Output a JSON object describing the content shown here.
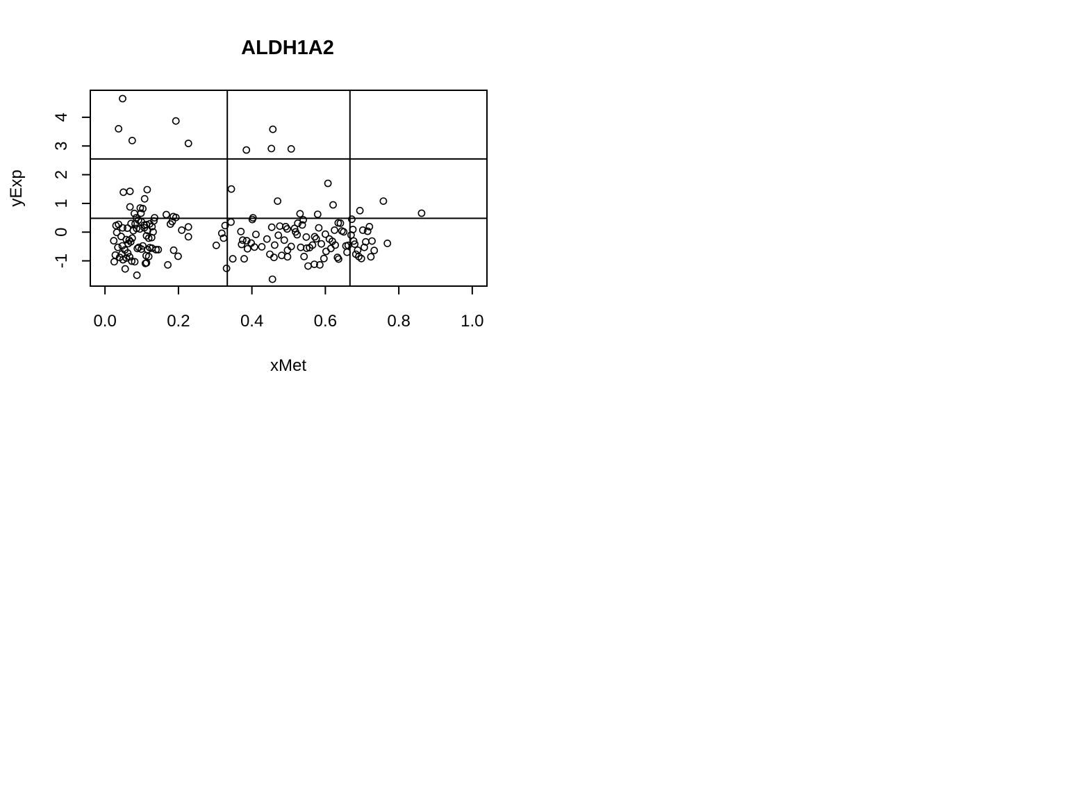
{
  "chart_data": {
    "type": "scatter",
    "title": "ALDH1A2",
    "xlabel": "xMet",
    "ylabel": "yExp",
    "xlim": [
      -0.04,
      1.04
    ],
    "ylim": [
      -1.88,
      4.94
    ],
    "x_ticks": [
      0.0,
      0.2,
      0.4,
      0.6,
      0.8,
      1.0
    ],
    "x_tick_labels": [
      "0.0",
      "0.2",
      "0.4",
      "0.6",
      "0.8",
      "1.0"
    ],
    "y_ticks": [
      -1,
      0,
      1,
      2,
      3,
      4
    ],
    "y_tick_labels": [
      "-1",
      "0",
      "1",
      "2",
      "3",
      "4"
    ],
    "grid": false,
    "reference_lines": {
      "vertical_x": [
        0.333,
        0.667
      ],
      "horizontal_y": [
        2.55,
        0.48
      ]
    },
    "marker": "open-circle",
    "series": [
      {
        "points": [
          [
            0.048,
            4.65
          ],
          [
            0.037,
            3.6
          ],
          [
            0.074,
            3.19
          ],
          [
            0.193,
            3.87
          ],
          [
            0.227,
            3.09
          ],
          [
            0.385,
            2.86
          ],
          [
            0.453,
            2.91
          ],
          [
            0.457,
            3.58
          ],
          [
            0.507,
            2.9
          ],
          [
            0.05,
            1.39
          ],
          [
            0.068,
            1.42
          ],
          [
            0.115,
            1.48
          ],
          [
            0.108,
            1.16
          ],
          [
            0.068,
            0.88
          ],
          [
            0.096,
            0.84
          ],
          [
            0.103,
            0.82
          ],
          [
            0.08,
            0.65
          ],
          [
            0.098,
            0.66
          ],
          [
            0.085,
            0.5
          ],
          [
            0.091,
            0.42
          ],
          [
            0.099,
            0.36
          ],
          [
            0.135,
            0.5
          ],
          [
            0.133,
            0.39
          ],
          [
            0.122,
            0.29
          ],
          [
            0.071,
            0.3
          ],
          [
            0.082,
            0.29
          ],
          [
            0.107,
            0.24
          ],
          [
            0.113,
            0.26
          ],
          [
            0.128,
            0.19
          ],
          [
            0.03,
            0.23
          ],
          [
            0.037,
            0.27
          ],
          [
            0.048,
            0.15
          ],
          [
            0.061,
            0.14
          ],
          [
            0.086,
            0.13
          ],
          [
            0.095,
            0.11
          ],
          [
            0.107,
            0.15
          ],
          [
            0.116,
            0.06
          ],
          [
            0.131,
            0.01
          ],
          [
            0.077,
            0.05
          ],
          [
            0.032,
            -0.01
          ],
          [
            0.044,
            -0.15
          ],
          [
            0.024,
            -0.3
          ],
          [
            0.058,
            -0.26
          ],
          [
            0.066,
            -0.28
          ],
          [
            0.074,
            -0.21
          ],
          [
            0.07,
            -0.34
          ],
          [
            0.063,
            -0.4
          ],
          [
            0.047,
            -0.48
          ],
          [
            0.035,
            -0.53
          ],
          [
            0.092,
            -0.53
          ],
          [
            0.099,
            -0.59
          ],
          [
            0.103,
            -0.48
          ],
          [
            0.088,
            -0.57
          ],
          [
            0.116,
            -0.61
          ],
          [
            0.128,
            -0.56
          ],
          [
            0.139,
            -0.61
          ],
          [
            0.145,
            -0.61
          ],
          [
            0.122,
            -0.54
          ],
          [
            0.119,
            -0.21
          ],
          [
            0.127,
            -0.19
          ],
          [
            0.113,
            -0.13
          ],
          [
            0.028,
            -0.8
          ],
          [
            0.046,
            -0.76
          ],
          [
            0.054,
            -0.62
          ],
          [
            0.062,
            -0.73
          ],
          [
            0.067,
            -0.86
          ],
          [
            0.058,
            -0.9
          ],
          [
            0.049,
            -0.96
          ],
          [
            0.04,
            -0.88
          ],
          [
            0.025,
            -1.03
          ],
          [
            0.073,
            -1.01
          ],
          [
            0.081,
            -1.03
          ],
          [
            0.11,
            -1.09
          ],
          [
            0.113,
            -1.07
          ],
          [
            0.055,
            -1.28
          ],
          [
            0.087,
            -1.5
          ],
          [
            0.112,
            -0.82
          ],
          [
            0.119,
            -0.85
          ],
          [
            0.167,
            0.61
          ],
          [
            0.178,
            0.28
          ],
          [
            0.183,
            0.37
          ],
          [
            0.186,
            0.54
          ],
          [
            0.193,
            0.51
          ],
          [
            0.209,
            0.07
          ],
          [
            0.227,
            0.18
          ],
          [
            0.227,
            -0.16
          ],
          [
            0.187,
            -0.63
          ],
          [
            0.199,
            -0.84
          ],
          [
            0.171,
            -1.14
          ],
          [
            0.303,
            -0.46
          ],
          [
            0.318,
            -0.04
          ],
          [
            0.323,
            -0.21
          ],
          [
            0.327,
            0.23
          ],
          [
            0.331,
            -1.26
          ],
          [
            0.343,
            0.35
          ],
          [
            0.344,
            1.5
          ],
          [
            0.348,
            -0.93
          ],
          [
            0.37,
            0.02
          ],
          [
            0.372,
            -0.43
          ],
          [
            0.375,
            -0.28
          ],
          [
            0.379,
            -0.93
          ],
          [
            0.386,
            -0.3
          ],
          [
            0.388,
            -0.58
          ],
          [
            0.398,
            -0.38
          ],
          [
            0.401,
            0.44
          ],
          [
            0.403,
            0.5
          ],
          [
            0.407,
            -0.52
          ],
          [
            0.411,
            -0.08
          ],
          [
            0.427,
            -0.51
          ],
          [
            0.441,
            -0.24
          ],
          [
            0.449,
            -0.77
          ],
          [
            0.454,
            0.17
          ],
          [
            0.456,
            -1.64
          ],
          [
            0.46,
            -0.88
          ],
          [
            0.462,
            -0.45
          ],
          [
            0.47,
            1.08
          ],
          [
            0.472,
            -0.11
          ],
          [
            0.476,
            0.21
          ],
          [
            0.481,
            -0.81
          ],
          [
            0.488,
            -0.28
          ],
          [
            0.492,
            0.19
          ],
          [
            0.496,
            0.11
          ],
          [
            0.497,
            -0.63
          ],
          [
            0.497,
            -0.86
          ],
          [
            0.507,
            -0.5
          ],
          [
            0.516,
            0.13
          ],
          [
            0.519,
            0.01
          ],
          [
            0.523,
            -0.09
          ],
          [
            0.525,
            0.31
          ],
          [
            0.531,
            0.64
          ],
          [
            0.533,
            -0.53
          ],
          [
            0.537,
            0.25
          ],
          [
            0.54,
            0.43
          ],
          [
            0.542,
            -0.85
          ],
          [
            0.548,
            -0.17
          ],
          [
            0.549,
            -0.56
          ],
          [
            0.553,
            -1.18
          ],
          [
            0.557,
            -0.54
          ],
          [
            0.565,
            -0.45
          ],
          [
            0.57,
            -1.12
          ],
          [
            0.571,
            -0.16
          ],
          [
            0.575,
            -0.23
          ],
          [
            0.579,
            0.62
          ],
          [
            0.582,
            0.15
          ],
          [
            0.585,
            -1.14
          ],
          [
            0.589,
            -0.41
          ],
          [
            0.596,
            -0.92
          ],
          [
            0.6,
            -0.07
          ],
          [
            0.602,
            -0.67
          ],
          [
            0.607,
            1.7
          ],
          [
            0.611,
            -0.24
          ],
          [
            0.615,
            -0.57
          ],
          [
            0.619,
            -0.32
          ],
          [
            0.621,
            0.95
          ],
          [
            0.625,
            0.07
          ],
          [
            0.627,
            -0.45
          ],
          [
            0.633,
            -0.88
          ],
          [
            0.635,
            0.32
          ],
          [
            0.636,
            -0.94
          ],
          [
            0.641,
            0.31
          ],
          [
            0.645,
            0.04
          ],
          [
            0.65,
            0.01
          ],
          [
            0.656,
            -0.48
          ],
          [
            0.659,
            -0.7
          ],
          [
            0.662,
            -0.46
          ],
          [
            0.67,
            -0.1
          ],
          [
            0.672,
            0.45
          ],
          [
            0.675,
            0.09
          ],
          [
            0.677,
            -0.31
          ],
          [
            0.68,
            -0.42
          ],
          [
            0.683,
            -0.77
          ],
          [
            0.688,
            -0.63
          ],
          [
            0.691,
            -0.85
          ],
          [
            0.694,
            0.75
          ],
          [
            0.698,
            -0.92
          ],
          [
            0.702,
            0.07
          ],
          [
            0.706,
            -0.53
          ],
          [
            0.71,
            -0.34
          ],
          [
            0.715,
            0.03
          ],
          [
            0.72,
            0.19
          ],
          [
            0.724,
            -0.86
          ],
          [
            0.727,
            -0.31
          ],
          [
            0.733,
            -0.64
          ],
          [
            0.758,
            1.08
          ],
          [
            0.769,
            -0.39
          ],
          [
            0.862,
            0.66
          ]
        ]
      }
    ]
  }
}
